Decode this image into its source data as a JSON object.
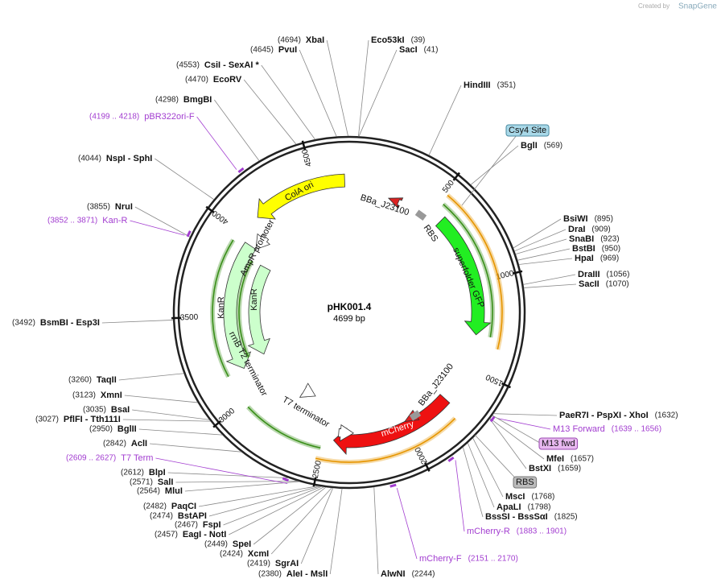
{
  "header": {
    "created_by": "Created by",
    "brand": "SnapGene"
  },
  "map": {
    "name": "pHK001.4",
    "length": "4699 bp",
    "ticks": [
      500,
      1000,
      1500,
      2000,
      2500,
      3000,
      3500,
      4000,
      4500
    ]
  },
  "sites": [
    {
      "name": "XbaI",
      "position": "(4694)"
    },
    {
      "name": "PvuI",
      "position": "(4645)"
    },
    {
      "name": "CsiI  - SexAI *",
      "position": "(4553)"
    },
    {
      "name": "EcoRV",
      "position": "(4470)"
    },
    {
      "name": "BmgBI",
      "position": "(4298)"
    },
    {
      "name": "NspI  - SphI",
      "position": "(4044)"
    },
    {
      "name": "NruI",
      "position": "(3855)"
    },
    {
      "name": "BsmBI   - Esp3I",
      "position": "(3492)"
    },
    {
      "name": "TaqII",
      "position": "(3260)"
    },
    {
      "name": "XmnI",
      "position": "(3123)"
    },
    {
      "name": "BsaI",
      "position": "(3035)"
    },
    {
      "name": "PflFI  - Tth111I",
      "position": "(3027)"
    },
    {
      "name": "BglII",
      "position": "(2950)"
    },
    {
      "name": "AclI",
      "position": "(2842)"
    },
    {
      "name": "BlpI",
      "position": "(2612)"
    },
    {
      "name": "SalI",
      "position": "(2571)"
    },
    {
      "name": "MluI",
      "position": "(2564)"
    },
    {
      "name": "PaqCI",
      "position": "(2482)"
    },
    {
      "name": "BstAPI",
      "position": "(2474)"
    },
    {
      "name": "FspI",
      "position": "(2467)"
    },
    {
      "name": "EagI  - NotI",
      "position": "(2457)"
    },
    {
      "name": "SpeI",
      "position": "(2449)"
    },
    {
      "name": "XcmI",
      "position": "(2424)"
    },
    {
      "name": "SgrAI",
      "position": "(2419)"
    },
    {
      "name": "AleI  - MslI",
      "position": "(2380)"
    },
    {
      "name": "Eco53kI",
      "position": "(39)"
    },
    {
      "name": "SacI",
      "position": "(41)"
    },
    {
      "name": "HindIII",
      "position": "(351)"
    },
    {
      "name": "BglI",
      "position": "(569)"
    },
    {
      "name": "BsiWI",
      "position": "(895)"
    },
    {
      "name": "DraI",
      "position": "(909)"
    },
    {
      "name": "SnaBI",
      "position": "(923)"
    },
    {
      "name": "BstBI",
      "position": "(950)"
    },
    {
      "name": "HpaI",
      "position": "(969)"
    },
    {
      "name": "DraIII",
      "position": "(1056)"
    },
    {
      "name": "SacII",
      "position": "(1070)"
    },
    {
      "name": "PaeR7I  - PspXI  - XhoI",
      "position": "(1632)"
    },
    {
      "name": "MfeI",
      "position": "(1657)"
    },
    {
      "name": "BstXI",
      "position": "(1659)"
    },
    {
      "name": "MscI",
      "position": "(1768)"
    },
    {
      "name": "ApaLI",
      "position": "(1798)"
    },
    {
      "name": "BssSI  - BssSαI",
      "position": "(1825)"
    },
    {
      "name": "AlwNI",
      "position": "(2244)"
    }
  ],
  "primers": [
    {
      "name": "pBR322ori-F",
      "range": "(4199 .. 4218)"
    },
    {
      "name": "Kan-R",
      "range": "(3852 .. 3871)"
    },
    {
      "name": "T7 Term",
      "range": "(2609 .. 2627)"
    },
    {
      "name": "M13 Forward",
      "range": "(1639 .. 1656)"
    },
    {
      "name": "mCherry-R",
      "range": "(1883 .. 1901)"
    },
    {
      "name": "mCherry-F",
      "range": "(2151 .. 2170)"
    }
  ],
  "tags": [
    {
      "label": "Csy4 Site"
    },
    {
      "label": "M13 fwd"
    },
    {
      "label": "RBS"
    }
  ],
  "features": [
    {
      "label": "ColA ori"
    },
    {
      "label": "AmpR promoter"
    },
    {
      "label": "KanR"
    },
    {
      "label": "KanR"
    },
    {
      "label": "rrnB T2 terminator"
    },
    {
      "label": "T7 terminator"
    },
    {
      "label": "mCherry"
    },
    {
      "label": "BBa_J23100"
    },
    {
      "label": "BBa_J23100"
    },
    {
      "label": "RBS"
    },
    {
      "label": "superfolder GFP"
    }
  ]
}
